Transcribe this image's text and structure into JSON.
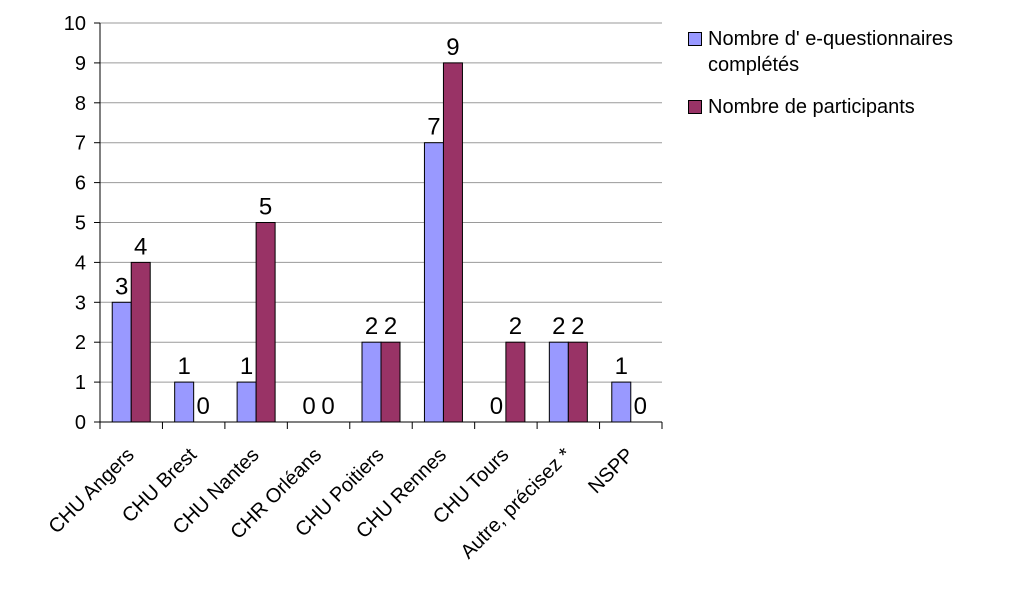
{
  "chart_data": {
    "type": "bar",
    "categories": [
      "CHU Angers",
      "CHU Brest",
      "CHU Nantes",
      "CHR Orléans",
      "CHU Poitiers",
      "CHU Rennes",
      "CHU Tours",
      "Autre, précisez *",
      "NSPP"
    ],
    "series": [
      {
        "name": "Nombre d' e-questionnaires complétés",
        "values": [
          3,
          1,
          1,
          0,
          2,
          7,
          0,
          2,
          1
        ],
        "color": "#9999ff"
      },
      {
        "name": "Nombre de participants",
        "values": [
          4,
          0,
          5,
          0,
          2,
          9,
          2,
          2,
          0
        ],
        "color": "#993366"
      }
    ],
    "ylim": [
      0,
      10
    ],
    "yticks": [
      0,
      1,
      2,
      3,
      4,
      5,
      6,
      7,
      8,
      9,
      10
    ],
    "grid": true,
    "legend_position": "right",
    "data_labels": true
  }
}
